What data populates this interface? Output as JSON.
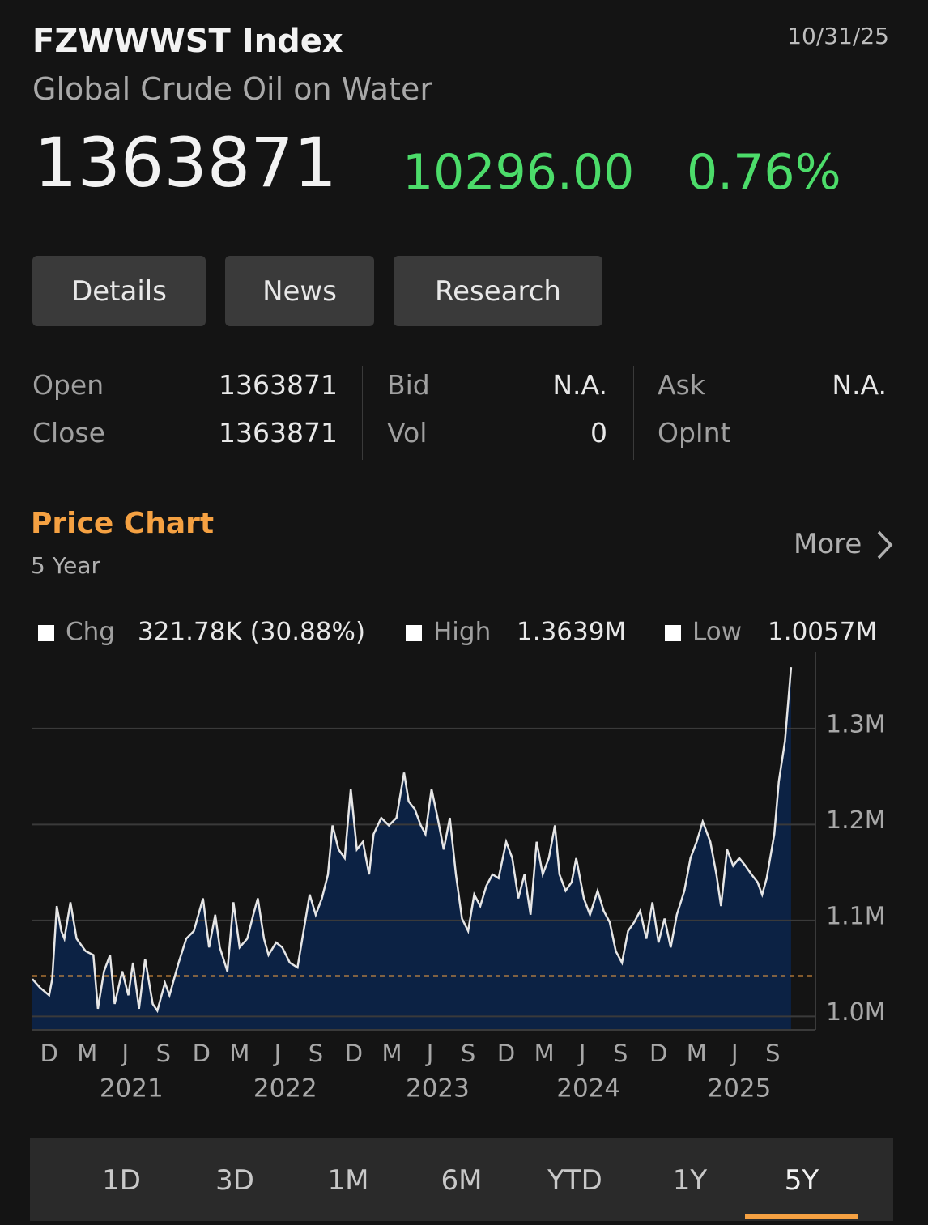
{
  "header": {
    "ticker": "FZWWWST Index",
    "name": "Global Crude Oil on Water",
    "date": "10/31/25",
    "price": "1363871",
    "change": "10296.00",
    "change_pct": "0.76%"
  },
  "buttons": [
    "Details",
    "News",
    "Research"
  ],
  "stats": [
    [
      {
        "label": "Open",
        "value": "1363871"
      },
      {
        "label": "Close",
        "value": "1363871"
      }
    ],
    [
      {
        "label": "Bid",
        "value": "N.A."
      },
      {
        "label": "Vol",
        "value": "0"
      }
    ],
    [
      {
        "label": "Ask",
        "value": "N.A."
      },
      {
        "label": "OpInt"
      }
    ]
  ],
  "section": {
    "title": "Price Chart",
    "subtitle": "5 Year",
    "more": "More"
  },
  "chart_data": {
    "type": "line",
    "color": "#e6e6e6",
    "fill": "#0c2244",
    "reference_line": 1042091,
    "reference_color": "#f5a142",
    "legend": [
      {
        "label": "Chg",
        "value": "321.78K (30.88%)"
      },
      {
        "label": "High",
        "value": "1.3639M"
      },
      {
        "label": "Low",
        "value": "1.0057M"
      }
    ],
    "x": [
      2020.83,
      2020.88,
      2020.94,
      2020.96,
      2020.99,
      2021.02,
      2021.04,
      2021.08,
      2021.12,
      2021.18,
      2021.23,
      2021.26,
      2021.3,
      2021.34,
      2021.37,
      2021.42,
      2021.46,
      2021.49,
      2021.53,
      2021.57,
      2021.62,
      2021.65,
      2021.7,
      2021.73,
      2021.79,
      2021.84,
      2021.89,
      2021.95,
      2021.99,
      2022.03,
      2022.06,
      2022.11,
      2022.15,
      2022.19,
      2022.24,
      2022.28,
      2022.31,
      2022.35,
      2022.38,
      2022.43,
      2022.47,
      2022.52,
      2022.57,
      2022.61,
      2022.65,
      2022.69,
      2022.73,
      2022.77,
      2022.8,
      2022.84,
      2022.88,
      2022.92,
      2022.96,
      2023.0,
      2023.04,
      2023.07,
      2023.12,
      2023.17,
      2023.22,
      2023.27,
      2023.3,
      2023.34,
      2023.38,
      2023.41,
      2023.45,
      2023.49,
      2023.53,
      2023.57,
      2023.61,
      2023.65,
      2023.69,
      2023.73,
      2023.77,
      2023.81,
      2023.85,
      2023.89,
      2023.94,
      2023.98,
      2024.02,
      2024.06,
      2024.1,
      2024.14,
      2024.18,
      2024.22,
      2024.26,
      2024.29,
      2024.33,
      2024.37,
      2024.4,
      2024.45,
      2024.49,
      2024.54,
      2024.58,
      2024.62,
      2024.66,
      2024.7,
      2024.74,
      2024.78,
      2024.82,
      2024.86,
      2024.9,
      2024.94,
      2024.98,
      2025.02,
      2025.06,
      2025.11,
      2025.15,
      2025.19,
      2025.23,
      2025.28,
      2025.32,
      2025.35,
      2025.39,
      2025.43,
      2025.47,
      2025.51,
      2025.55,
      2025.59,
      2025.62,
      2025.65,
      2025.7,
      2025.73,
      2025.77,
      2025.79,
      2025.81
    ],
    "values": [
      1039000,
      1030000,
      1022000,
      1039000,
      1115000,
      1089000,
      1081000,
      1119000,
      1081000,
      1068000,
      1064000,
      1008000,
      1047000,
      1064000,
      1013000,
      1047000,
      1022000,
      1056000,
      1008000,
      1060000,
      1013000,
      1006000,
      1035000,
      1022000,
      1056000,
      1081000,
      1089000,
      1123000,
      1072000,
      1106000,
      1072000,
      1047000,
      1119000,
      1072000,
      1081000,
      1106000,
      1123000,
      1081000,
      1064000,
      1077000,
      1072000,
      1056000,
      1051000,
      1089000,
      1127000,
      1106000,
      1123000,
      1148000,
      1199000,
      1174000,
      1165000,
      1237000,
      1174000,
      1182000,
      1148000,
      1190000,
      1207000,
      1199000,
      1207000,
      1254000,
      1224000,
      1216000,
      1199000,
      1190000,
      1237000,
      1207000,
      1174000,
      1207000,
      1148000,
      1102000,
      1089000,
      1127000,
      1115000,
      1136000,
      1148000,
      1144000,
      1182000,
      1165000,
      1123000,
      1148000,
      1106000,
      1182000,
      1148000,
      1165000,
      1199000,
      1148000,
      1131000,
      1140000,
      1165000,
      1123000,
      1106000,
      1131000,
      1110000,
      1098000,
      1068000,
      1056000,
      1089000,
      1098000,
      1110000,
      1081000,
      1119000,
      1077000,
      1102000,
      1072000,
      1106000,
      1131000,
      1165000,
      1182000,
      1203000,
      1182000,
      1148000,
      1115000,
      1174000,
      1157000,
      1165000,
      1157000,
      1148000,
      1140000,
      1127000,
      1144000,
      1190000,
      1245000,
      1287000,
      1325000,
      1363871
    ],
    "xlim": [
      2020.83,
      2025.97
    ],
    "ylim": [
      986000,
      1380000
    ],
    "yticks": [
      {
        "value": 1000000,
        "label": "1.0M"
      },
      {
        "value": 1100000,
        "label": "1.1M"
      },
      {
        "value": 1200000,
        "label": "1.2M"
      },
      {
        "value": 1300000,
        "label": "1.3M"
      }
    ],
    "xticks": [
      {
        "value": 2020.94,
        "label": "D"
      },
      {
        "value": 2021.19,
        "label": "M"
      },
      {
        "value": 2021.44,
        "label": "J"
      },
      {
        "value": 2021.69,
        "label": "S"
      },
      {
        "value": 2021.94,
        "label": "D"
      },
      {
        "value": 2022.19,
        "label": "M"
      },
      {
        "value": 2022.44,
        "label": "J"
      },
      {
        "value": 2022.69,
        "label": "S"
      },
      {
        "value": 2022.94,
        "label": "D"
      },
      {
        "value": 2023.19,
        "label": "M"
      },
      {
        "value": 2023.44,
        "label": "J"
      },
      {
        "value": 2023.69,
        "label": "S"
      },
      {
        "value": 2023.94,
        "label": "D"
      },
      {
        "value": 2024.19,
        "label": "M"
      },
      {
        "value": 2024.44,
        "label": "J"
      },
      {
        "value": 2024.69,
        "label": "S"
      },
      {
        "value": 2024.94,
        "label": "D"
      },
      {
        "value": 2025.19,
        "label": "M"
      },
      {
        "value": 2025.44,
        "label": "J"
      },
      {
        "value": 2025.69,
        "label": "S"
      }
    ],
    "xticks2": [
      {
        "value": 2021.48,
        "label": "2021"
      },
      {
        "value": 2022.49,
        "label": "2022"
      },
      {
        "value": 2023.49,
        "label": "2023"
      },
      {
        "value": 2024.48,
        "label": "2024"
      },
      {
        "value": 2025.47,
        "label": "2025"
      }
    ],
    "grid": true
  },
  "ranges": [
    "1D",
    "3D",
    "1M",
    "6M",
    "YTD",
    "1Y",
    "5Y"
  ],
  "selected_range": 6
}
